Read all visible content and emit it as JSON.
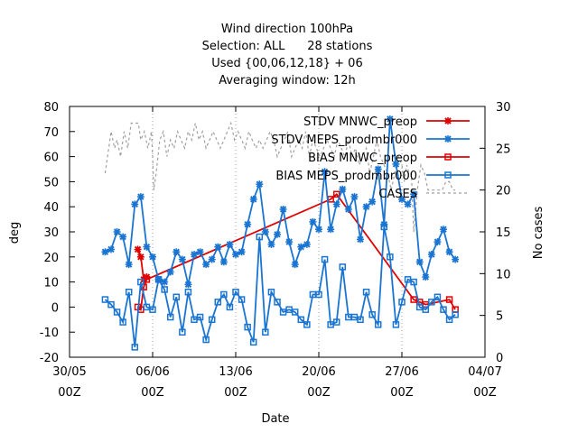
{
  "chart_data": {
    "type": "line",
    "title_lines": [
      "Wind direction 100hPa",
      "Selection: ALL      28 stations",
      "Used {00,06,12,18} + 06",
      "Averaging window: 12h"
    ],
    "xlabel": "Date",
    "ylabel": "deg",
    "y2label": "No cases",
    "xlim": [
      0,
      35
    ],
    "ylim": [
      -20,
      80
    ],
    "y2lim": [
      0,
      30
    ],
    "x_ticks": [
      {
        "x": 0,
        "top": "30/05",
        "bottom": "00Z"
      },
      {
        "x": 7,
        "top": "06/06",
        "bottom": "00Z"
      },
      {
        "x": 14,
        "top": "13/06",
        "bottom": "00Z"
      },
      {
        "x": 21,
        "top": "20/06",
        "bottom": "00Z"
      },
      {
        "x": 28,
        "top": "27/06",
        "bottom": "00Z"
      },
      {
        "x": 35,
        "top": "04/07",
        "bottom": "00Z"
      }
    ],
    "y_ticks": [
      -20,
      -10,
      0,
      10,
      20,
      30,
      40,
      50,
      60,
      70,
      80
    ],
    "y2_ticks": [
      0,
      5,
      10,
      15,
      20,
      25,
      30
    ],
    "grid": true,
    "legend_position": "top-right",
    "series": [
      {
        "name": "STDV MNWC_preop",
        "color": "#e00000",
        "marker": "x",
        "axis": "y",
        "x": [
          5.75,
          6.0,
          6.25,
          6.5
        ],
        "y": [
          23,
          20,
          11,
          12
        ]
      },
      {
        "name": "STDV MEPS_prodmbr000",
        "color": "#1a75d2",
        "marker": "x",
        "axis": "y",
        "x": [
          3.0,
          3.5,
          4.0,
          4.5,
          5.0,
          5.5,
          6.0,
          6.5,
          7.0,
          7.5,
          8.0,
          8.5,
          9.0,
          9.5,
          10.0,
          10.5,
          11.0,
          11.5,
          12.0,
          12.5,
          13.0,
          13.5,
          14.0,
          14.5,
          15.0,
          15.5,
          16.0,
          16.5,
          17.0,
          17.5,
          18.0,
          18.5,
          19.0,
          19.5,
          20.0,
          20.5,
          21.0,
          21.5,
          22.0,
          22.5,
          23.0,
          23.5,
          24.0,
          24.5,
          25.0,
          25.5,
          26.0,
          26.5,
          27.0,
          27.5,
          28.0,
          28.5,
          29.0,
          29.5,
          30.0,
          30.5,
          31.0,
          31.5,
          32.0,
          32.5
        ],
        "y": [
          22,
          23,
          30,
          28,
          17,
          41,
          44,
          24,
          20,
          11,
          10,
          14,
          22,
          19,
          9,
          21,
          22,
          17,
          19,
          24,
          18,
          25,
          21,
          22,
          33,
          43,
          49,
          30,
          25,
          29,
          39,
          26,
          17,
          24,
          25,
          34,
          31,
          54,
          31,
          41,
          47,
          39,
          44,
          27,
          40,
          42,
          55,
          33,
          75,
          57,
          43,
          41,
          45,
          18,
          12,
          21,
          26,
          31,
          22,
          19
        ]
      },
      {
        "name": "BIAS MNWC_preop",
        "color": "#e00000",
        "marker": "square",
        "axis": "y",
        "x": [
          5.75,
          6.0,
          6.25,
          6.5,
          22.0,
          22.5,
          29.0,
          29.5,
          30.0,
          32.0,
          32.5
        ],
        "y": [
          0,
          -1,
          8,
          11,
          43,
          45,
          3,
          2,
          1,
          3,
          -1
        ]
      },
      {
        "name": "BIAS MEPS_prodmbr000",
        "color": "#1a75d2",
        "marker": "square",
        "axis": "y",
        "x": [
          3.0,
          3.5,
          4.0,
          4.5,
          5.0,
          5.5,
          6.0,
          6.5,
          7.0,
          7.5,
          8.0,
          8.5,
          9.0,
          9.5,
          10.0,
          10.5,
          11.0,
          11.5,
          12.0,
          12.5,
          13.0,
          13.5,
          14.0,
          14.5,
          15.0,
          15.5,
          16.0,
          16.5,
          17.0,
          17.5,
          18.0,
          18.5,
          19.0,
          19.5,
          20.0,
          20.5,
          21.0,
          21.5,
          22.0,
          22.5,
          23.0,
          23.5,
          24.0,
          24.5,
          25.0,
          25.5,
          26.0,
          26.5,
          27.0,
          27.5,
          28.0,
          28.5,
          29.0,
          29.5,
          30.0,
          30.5,
          31.0,
          31.5,
          32.0,
          32.5
        ],
        "y": [
          3,
          1,
          -2,
          -6,
          6,
          -16,
          10,
          0,
          -1,
          11,
          7,
          -4,
          4,
          -10,
          6,
          -5,
          -4,
          -13,
          -5,
          2,
          5,
          0,
          6,
          3,
          -8,
          -14,
          28,
          -10,
          6,
          2,
          -2,
          -1,
          -2,
          -5,
          -7,
          5,
          5,
          19,
          -7,
          -6,
          16,
          -4,
          -4,
          -5,
          6,
          -3,
          -7,
          32,
          20,
          -7,
          2,
          11,
          10,
          0,
          -1,
          2,
          4,
          -1,
          -5,
          -3
        ]
      },
      {
        "name": "CASES",
        "color": "#a0a0a0",
        "marker": "none",
        "dash": true,
        "axis": "y2",
        "x": [
          3.0,
          3.2,
          3.5,
          3.8,
          4.0,
          4.3,
          4.6,
          4.9,
          5.2,
          5.5,
          5.8,
          6.0,
          6.3,
          6.6,
          6.9,
          7.0,
          7.1,
          7.3,
          7.6,
          7.9,
          8.2,
          8.5,
          8.8,
          9.1,
          9.4,
          9.7,
          10.0,
          10.3,
          10.6,
          10.9,
          11.2,
          11.5,
          11.8,
          12.1,
          12.4,
          12.7,
          13.0,
          13.3,
          13.6,
          13.9,
          14.2,
          14.5,
          14.8,
          15.1,
          15.4,
          15.7,
          16.0,
          16.3,
          16.6,
          16.9,
          17.2,
          17.5,
          17.8,
          18.1,
          18.4,
          18.7,
          19.0,
          19.3,
          19.6,
          19.9,
          20.2,
          20.5,
          20.8,
          21.1,
          21.4,
          21.7,
          22.0,
          22.3,
          22.6,
          22.9,
          23.2,
          23.5,
          23.8,
          24.1,
          24.4,
          24.7,
          25.0,
          25.3,
          25.6,
          25.9,
          26.2,
          26.5,
          26.8,
          27.1,
          27.4,
          27.7,
          28.0,
          28.2,
          28.4,
          28.6,
          28.8,
          29.0,
          29.3,
          29.6,
          29.9,
          30.2,
          30.5,
          30.8,
          31.1,
          31.4,
          31.7,
          32.0,
          32.3,
          32.5
        ],
        "y": [
          22,
          24,
          27,
          25,
          26,
          24,
          27,
          25,
          28,
          28,
          28,
          26,
          27,
          25,
          27,
          24,
          20,
          22,
          26,
          27,
          24,
          26,
          25,
          27,
          26,
          25,
          27,
          26,
          28,
          26,
          27,
          25,
          26,
          27,
          26,
          25,
          26,
          27,
          28,
          26,
          27,
          26,
          25,
          27,
          26,
          25,
          26,
          25,
          26,
          27,
          26,
          24,
          25,
          26,
          27,
          24,
          25,
          26,
          25,
          27,
          24,
          26,
          25,
          24,
          25,
          26,
          25,
          24,
          26,
          25,
          24,
          26,
          24,
          25,
          23,
          24,
          25,
          22,
          24,
          26,
          24,
          23,
          22,
          20,
          22,
          24,
          23,
          21,
          23,
          22,
          22,
          15,
          20,
          23,
          22,
          20,
          20,
          20,
          20,
          20,
          21,
          21,
          20,
          20
        ]
      }
    ]
  }
}
